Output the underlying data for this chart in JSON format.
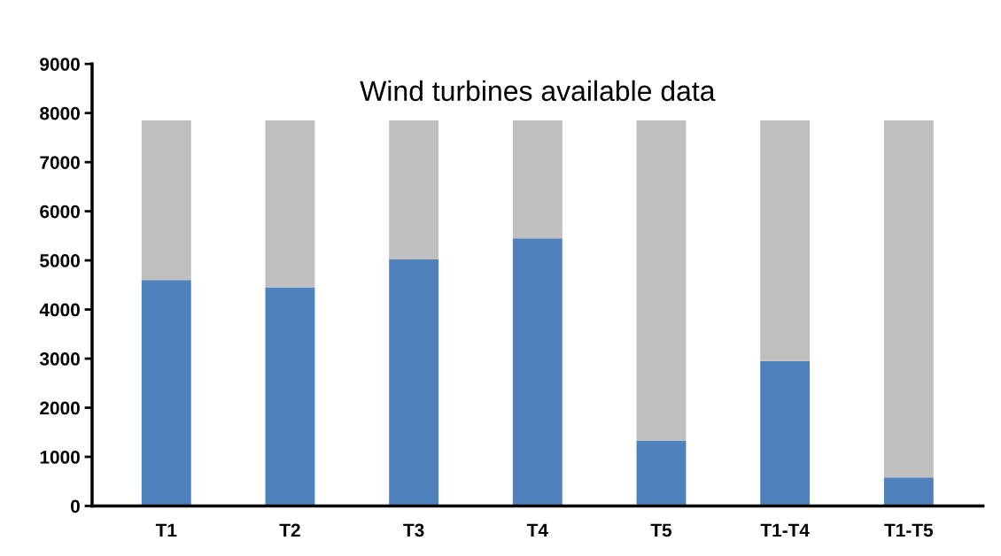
{
  "chart_data": {
    "type": "bar",
    "title": "Wind turbines available data",
    "stacked": true,
    "categories": [
      "T1",
      "T2",
      "T3",
      "T4",
      "T5",
      "T1-T4",
      "T1-T5"
    ],
    "series": [
      {
        "color": "#4f81bd",
        "values": [
          4600,
          4450,
          5020,
          5450,
          1330,
          2950,
          580
        ]
      },
      {
        "color": "#bfbfbf",
        "values": [
          3250,
          3400,
          2830,
          2400,
          6520,
          4900,
          7270
        ]
      }
    ],
    "ylim": [
      0,
      9000
    ],
    "yticks": [
      0,
      1000,
      2000,
      3000,
      4000,
      5000,
      6000,
      7000,
      8000,
      9000
    ]
  }
}
